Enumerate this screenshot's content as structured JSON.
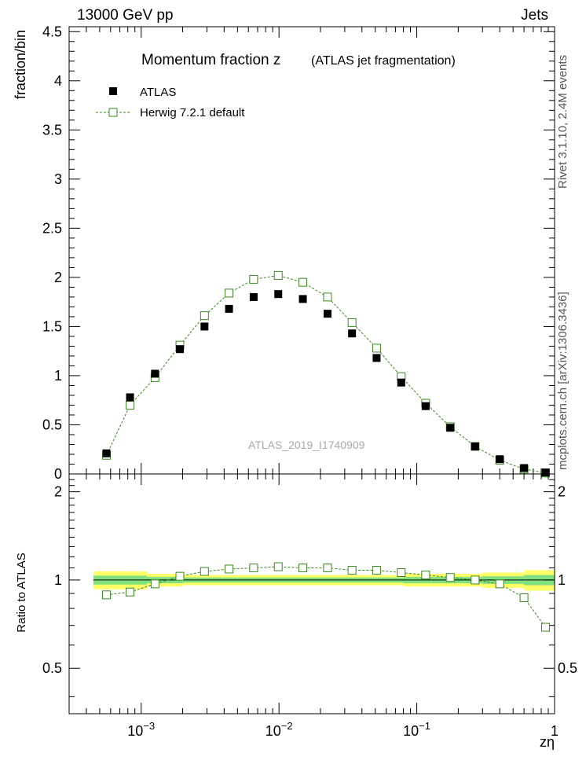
{
  "header": {
    "left": "13000 GeV pp",
    "right": "Jets",
    "rivet": "Rivet 3.1.10,  2.4M events",
    "mcplots": "mcplots.cern.ch [arXiv:1306.3436]"
  },
  "chart_data": {
    "type": "scatter",
    "title": "Momentum fraction z",
    "subtitle": "(ATLAS jet fragmentation)",
    "xlabel": "zη",
    "ylabel": "fraction/bin",
    "ratio_ylabel": "Ratio to ATLAS",
    "watermark": "ATLAS_2019_I1740909",
    "xscale": "log",
    "xlim": [
      0.0003,
      1
    ],
    "ylim": [
      0,
      4.55
    ],
    "ratio_ylim": [
      0.35,
      2.3
    ],
    "grid": false,
    "legend_position": "top-left",
    "x_tick_labels": [
      "10^-3",
      "10^-2",
      "10^-1",
      "1"
    ],
    "y_tick_labels": [
      "0",
      "0.5",
      "1",
      "1.5",
      "2",
      "2.5",
      "3",
      "3.5",
      "4",
      "4.5"
    ],
    "ratio_tick_labels": [
      "0.5",
      "1",
      "2"
    ],
    "x": [
      0.00056,
      0.00083,
      0.00126,
      0.00191,
      0.00288,
      0.00434,
      0.00655,
      0.00988,
      0.0149,
      0.0225,
      0.0339,
      0.0511,
      0.0771,
      0.116,
      0.175,
      0.265,
      0.4,
      0.6,
      0.86
    ],
    "series": [
      {
        "name": "ATLAS",
        "marker": "filled-square",
        "color": "#000000",
        "values": [
          0.21,
          0.78,
          1.02,
          1.27,
          1.5,
          1.68,
          1.8,
          1.83,
          1.78,
          1.63,
          1.43,
          1.18,
          0.93,
          0.69,
          0.47,
          0.28,
          0.15,
          0.06,
          0.015
        ]
      },
      {
        "name": "Herwig 7.2.1 default",
        "marker": "open-square",
        "line": "dashed",
        "color": "#3a8a1e",
        "values": [
          0.19,
          0.7,
          0.98,
          1.31,
          1.61,
          1.84,
          1.98,
          2.02,
          1.95,
          1.8,
          1.54,
          1.28,
          0.99,
          0.72,
          0.48,
          0.28,
          0.14,
          0.05,
          0.01
        ]
      }
    ],
    "ratio": {
      "reference": "ATLAS",
      "values": [
        0.89,
        0.91,
        0.97,
        1.03,
        1.07,
        1.09,
        1.1,
        1.11,
        1.1,
        1.1,
        1.08,
        1.08,
        1.06,
        1.04,
        1.02,
        1.0,
        0.97,
        0.87,
        0.69
      ],
      "bands": [
        {
          "x": [
            0.00045,
            0.0011
          ],
          "inner": 0.035,
          "outer": 0.07
        },
        {
          "x": [
            0.0011,
            0.002
          ],
          "inner": 0.025,
          "outer": 0.05
        },
        {
          "x": [
            0.002,
            0.08
          ],
          "inner": 0.02,
          "outer": 0.04
        },
        {
          "x": [
            0.08,
            0.3
          ],
          "inner": 0.025,
          "outer": 0.05
        },
        {
          "x": [
            0.3,
            0.6
          ],
          "inner": 0.03,
          "outer": 0.06
        },
        {
          "x": [
            0.6,
            1.0
          ],
          "inner": 0.04,
          "outer": 0.08
        }
      ],
      "band_colors": {
        "inner": "#7ee07e",
        "outer": "#ffff66"
      }
    }
  }
}
